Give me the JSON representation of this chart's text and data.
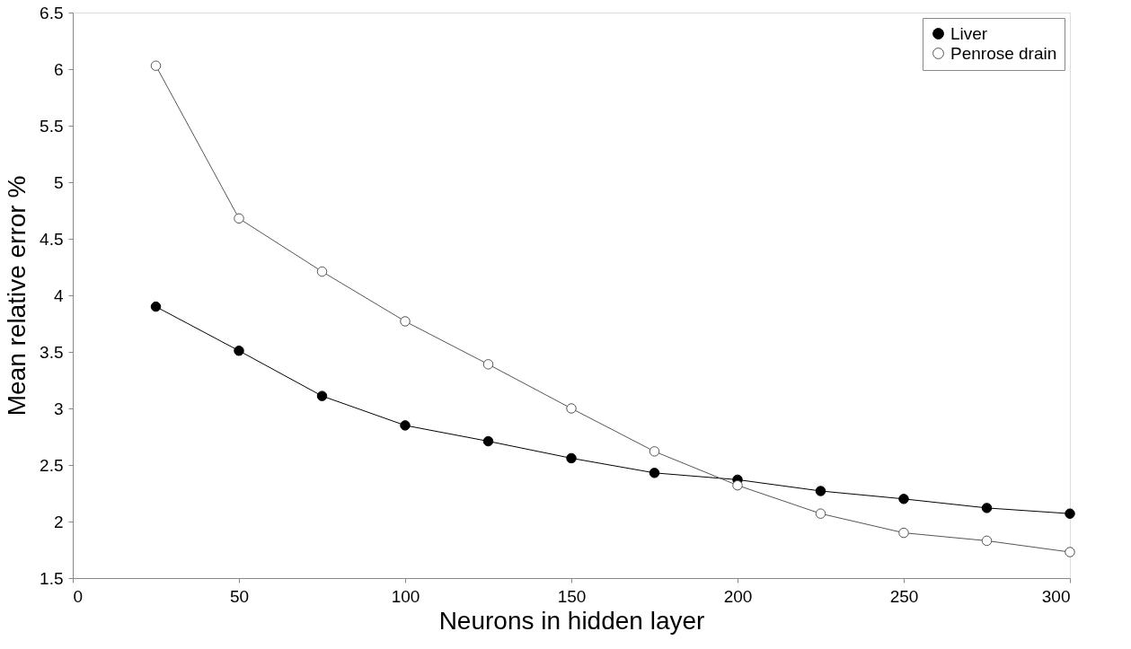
{
  "chart_data": {
    "type": "line",
    "xlabel": "Neurons in hidden layer",
    "ylabel": "Mean relative error %",
    "x": [
      25,
      50,
      75,
      100,
      125,
      150,
      175,
      200,
      225,
      250,
      275,
      300
    ],
    "series": [
      {
        "name": "Liver",
        "color": "#000000",
        "values": [
          3.9,
          3.51,
          3.11,
          2.85,
          2.71,
          2.56,
          2.43,
          2.37,
          2.27,
          2.2,
          2.12,
          2.07
        ]
      },
      {
        "name": "Penrose drain",
        "color": "#555555",
        "values": [
          6.03,
          4.68,
          4.21,
          3.77,
          3.39,
          3.0,
          2.62,
          2.32,
          2.07,
          1.9,
          1.83,
          1.73
        ]
      }
    ],
    "xlim": [
      0,
      300
    ],
    "xticks": [
      0,
      50,
      100,
      150,
      200,
      250,
      300
    ],
    "ylim": [
      1.5,
      6.5
    ],
    "yticks": [
      1.5,
      2,
      2.5,
      3,
      3.5,
      4,
      4.5,
      5,
      5.5,
      6,
      6.5
    ],
    "marker": "circle",
    "line_style": "solid",
    "grid": false,
    "legend": "top right"
  }
}
